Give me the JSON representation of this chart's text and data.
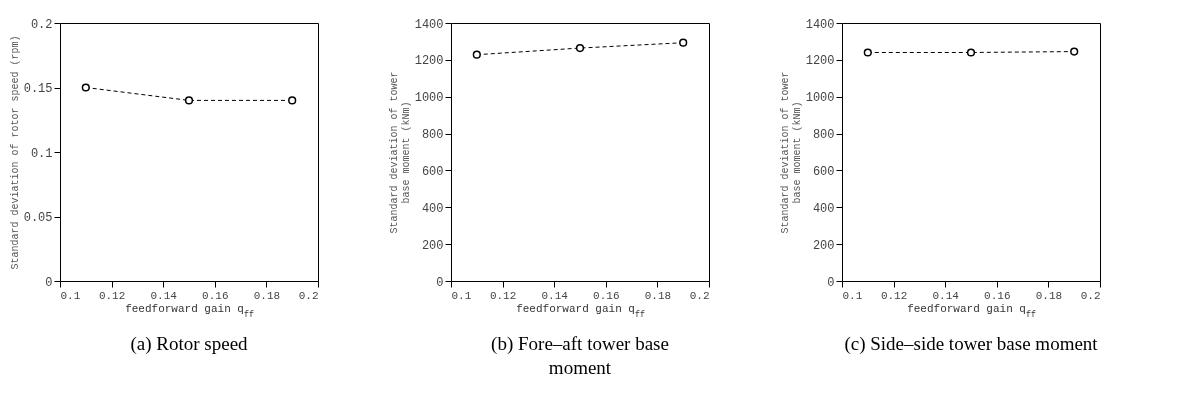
{
  "chart_data": [
    {
      "type": "line",
      "title": "(a) Rotor speed",
      "xlabel": "feedforward gain q$_{ff}$",
      "ylabel": "Standard deviation of rotor speed (rpm)",
      "x": [
        0.11,
        0.15,
        0.19
      ],
      "series": [
        {
          "color": "#000000",
          "values": [
            0.15,
            0.14,
            0.14
          ]
        }
      ],
      "xlim": [
        0.1,
        0.2
      ],
      "xticks": [
        0.1,
        0.12,
        0.14,
        0.16,
        0.18,
        0.2
      ],
      "ylim": [
        0,
        0.2
      ],
      "yticks": [
        0,
        0.05,
        0.1,
        0.15,
        0.2
      ],
      "marker": "circle",
      "line_style": "dashed",
      "grid": false
    },
    {
      "type": "line",
      "title": "(b) Fore–aft tower base\nmoment",
      "xlabel": "feedforward gain q$_{ff}$",
      "ylabel": "Standard deviation of tower\nbase moment (kNm)",
      "x": [
        0.11,
        0.15,
        0.19
      ],
      "series": [
        {
          "color": "#000000",
          "values": [
            1228,
            1264,
            1293
          ]
        }
      ],
      "xlim": [
        0.1,
        0.2
      ],
      "xticks": [
        0.1,
        0.12,
        0.14,
        0.16,
        0.18,
        0.2
      ],
      "ylim": [
        0,
        1400
      ],
      "yticks": [
        0,
        200,
        400,
        600,
        800,
        1000,
        1200,
        1400
      ],
      "marker": "circle",
      "line_style": "dashed",
      "grid": false
    },
    {
      "type": "line",
      "title": "(c) Side–side tower base moment",
      "xlabel": "feedforward gain q$_{ff}$",
      "ylabel": "Standard deviation of tower\nbase moment (kNm)",
      "x": [
        0.11,
        0.15,
        0.19
      ],
      "series": [
        {
          "color": "#000000",
          "values": [
            1240,
            1240,
            1245
          ]
        }
      ],
      "xlim": [
        0.1,
        0.2
      ],
      "xticks": [
        0.1,
        0.12,
        0.14,
        0.16,
        0.18,
        0.2
      ],
      "ylim": [
        0,
        1400
      ],
      "yticks": [
        0,
        200,
        400,
        600,
        800,
        1000,
        1200,
        1400
      ],
      "marker": "circle",
      "line_style": "dashed",
      "grid": false
    }
  ]
}
